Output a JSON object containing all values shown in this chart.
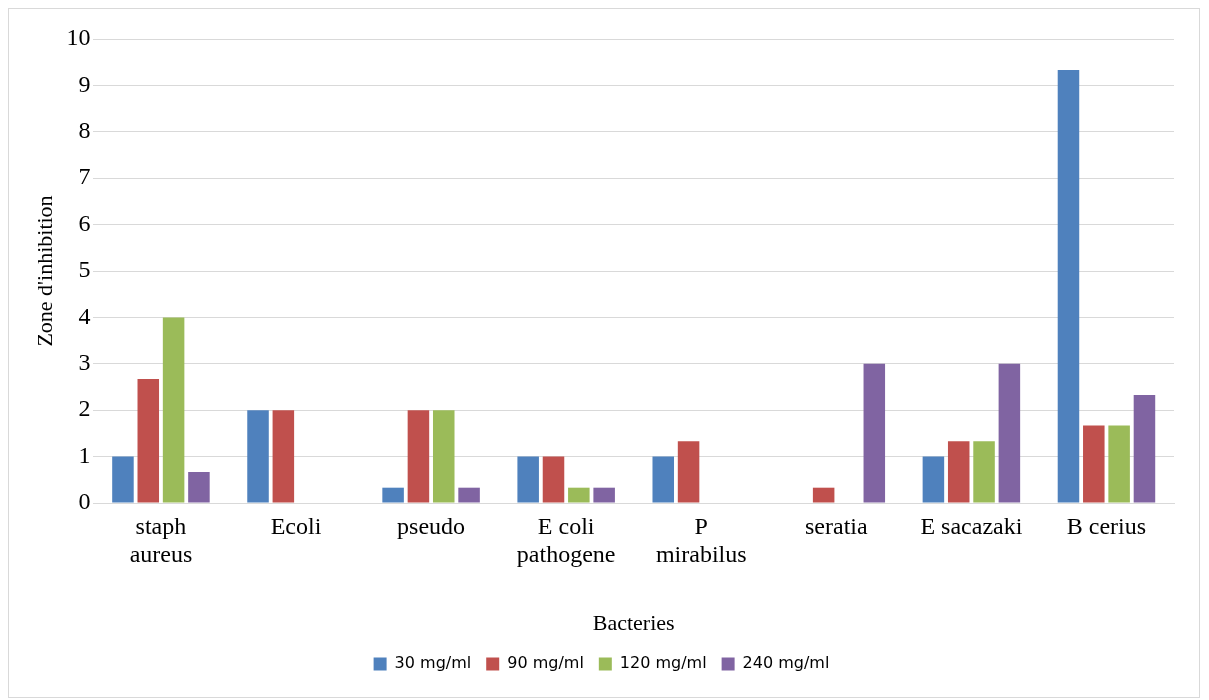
{
  "chart_data": {
    "type": "bar",
    "xlabel": "Bacteries",
    "ylabel": "Zone d'inhibition",
    "categories": [
      "staph aureus",
      "Ecoli",
      "pseudo",
      "E coli pathogene",
      "P mirabilus",
      "seratia",
      "E sacazaki",
      "B cerius"
    ],
    "series": [
      {
        "name": "30 mg/ml",
        "color": "#4f81bd",
        "values": [
          1,
          2,
          0.33,
          1,
          1,
          0,
          1,
          9.33
        ]
      },
      {
        "name": "90 mg/ml",
        "color": "#c0504d",
        "values": [
          2.67,
          2,
          2,
          1,
          1.33,
          0.33,
          1.33,
          1.67
        ]
      },
      {
        "name": "120 mg/ml",
        "color": "#9bbb59",
        "values": [
          4,
          0,
          2,
          0.33,
          0,
          0,
          1.33,
          1.67
        ]
      },
      {
        "name": "240 mg/ml",
        "color": "#8064a2",
        "values": [
          0.67,
          0,
          0.33,
          0.33,
          0,
          3,
          3,
          2.33
        ]
      }
    ],
    "ylim": [
      0,
      10
    ],
    "yticks": [
      0,
      1,
      2,
      3,
      4,
      5,
      6,
      7,
      8,
      9,
      10
    ],
    "grid": "y",
    "legend": "bottom"
  }
}
